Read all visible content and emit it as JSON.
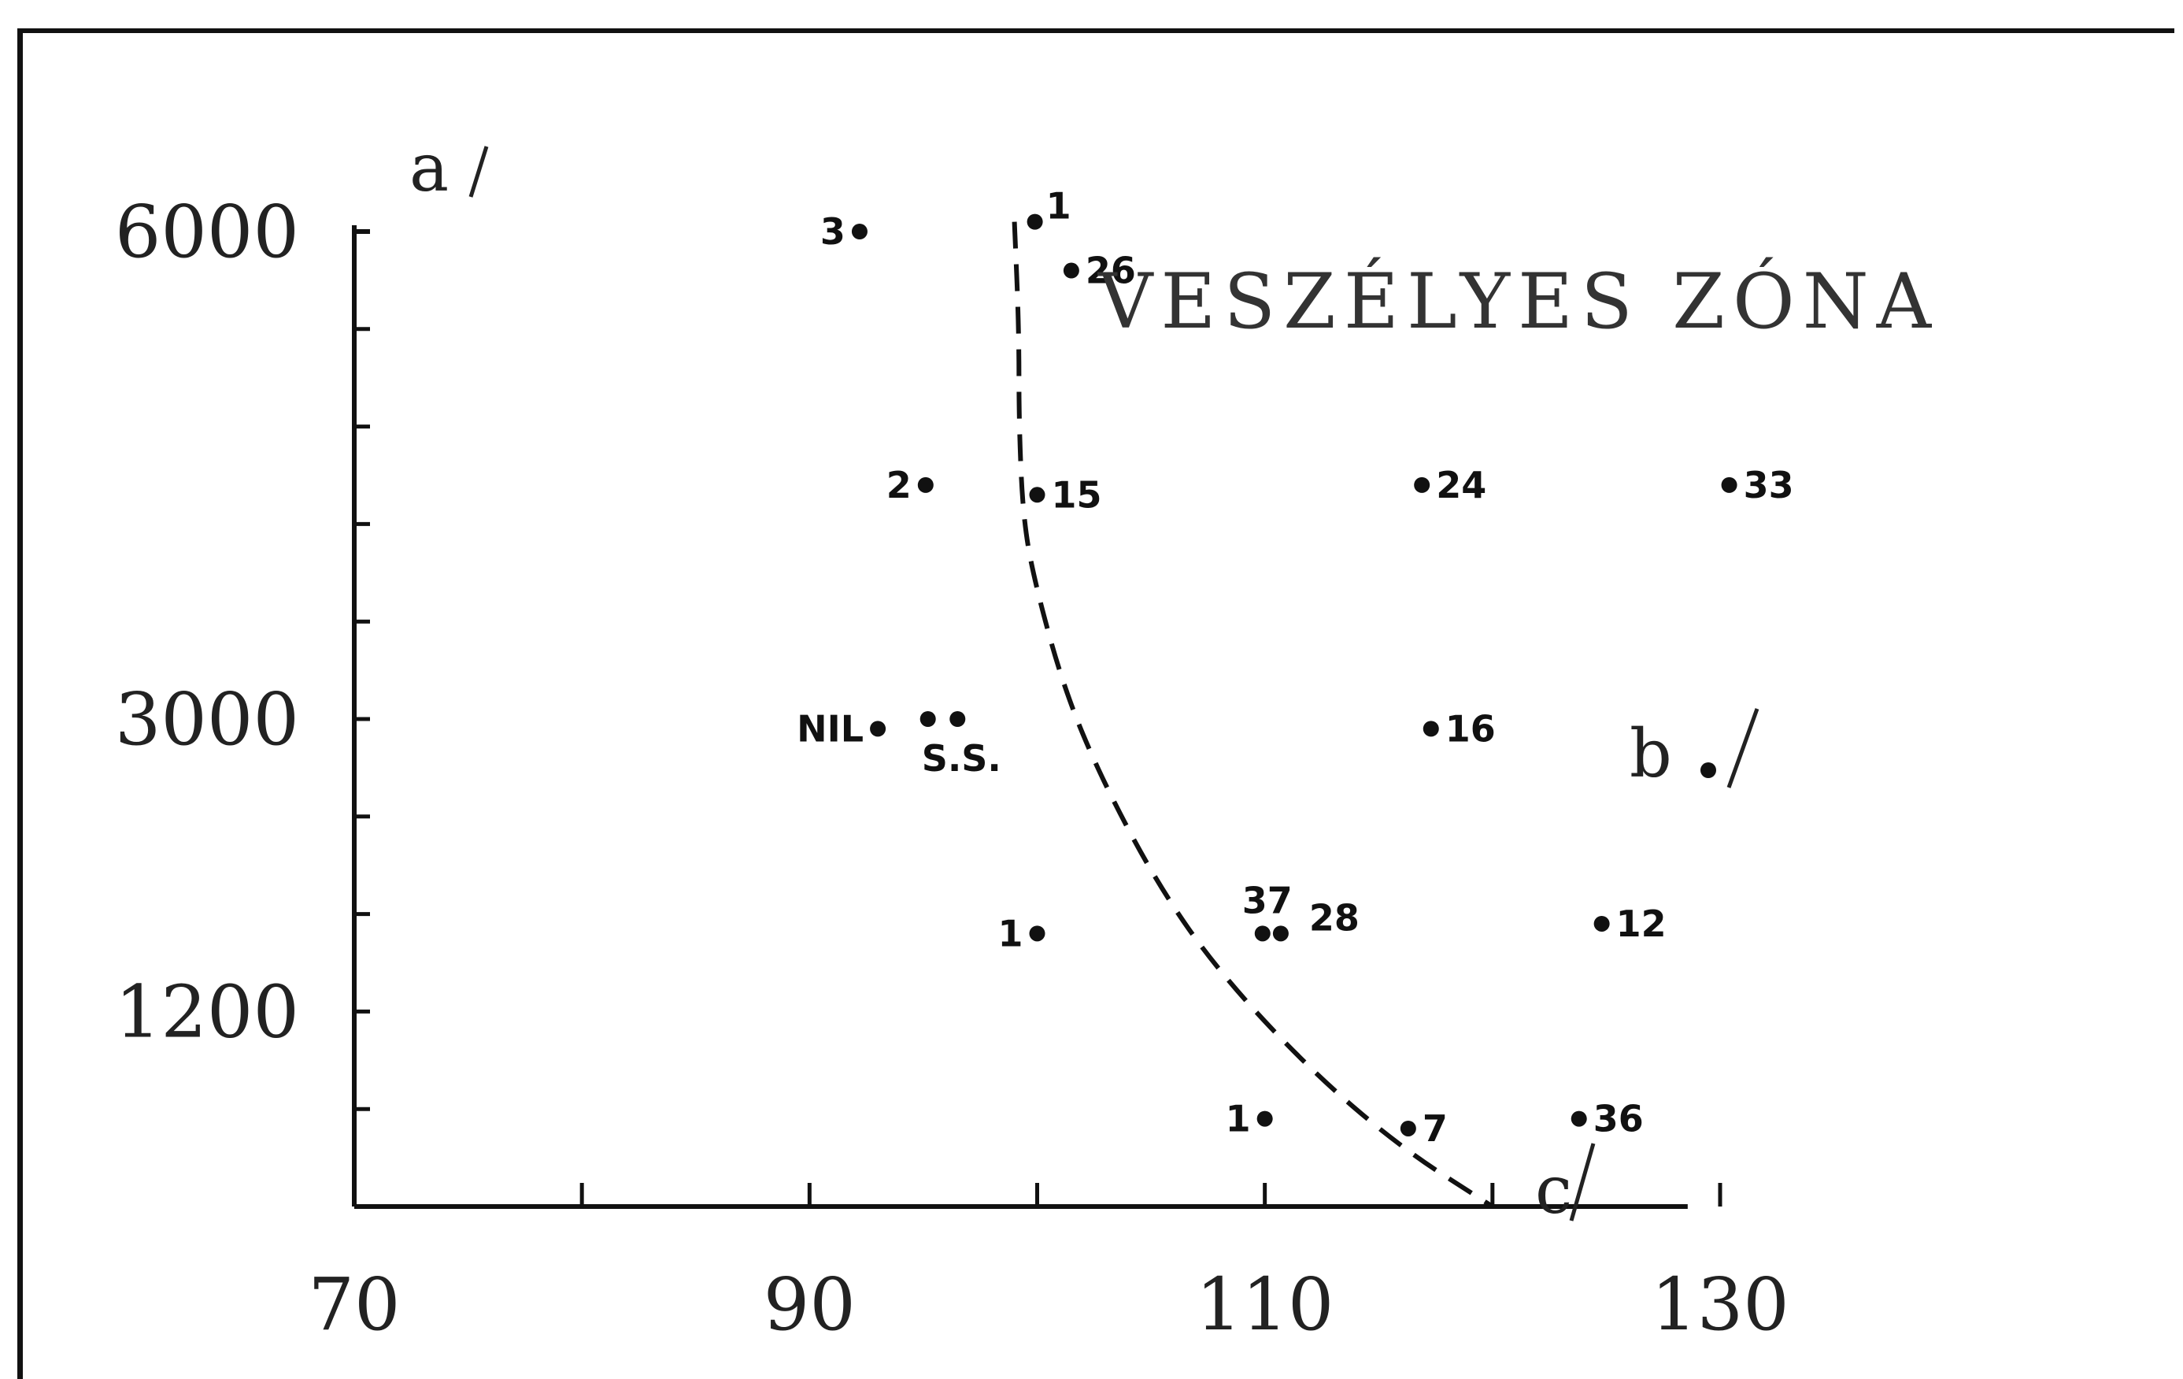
{
  "chart_data": {
    "type": "scatter",
    "title": "",
    "annotation": "VESZÉLYES ZÓNA",
    "x_axis": {
      "letter": "c",
      "tick_labels": [
        "70",
        "90",
        "110",
        "130"
      ],
      "tick_values": [
        70,
        90,
        110,
        130
      ],
      "minor_tick_values": [
        80,
        100,
        120
      ],
      "range": [
        70,
        130
      ]
    },
    "y_axis": {
      "letter": "a",
      "tick_labels": [
        "1200",
        "3000",
        "6000"
      ],
      "tick_levels": [
        2,
        5,
        10
      ],
      "levels": [
        0,
        1,
        2,
        3,
        4,
        5,
        6,
        7,
        8,
        9,
        10
      ],
      "note": "non-linear: level 2 = 1200, level 5 = 3000, level 10 = 6000"
    },
    "side_letter": "b",
    "points": [
      {
        "label": "3",
        "x": 92.2,
        "level": 10
      },
      {
        "label": "1",
        "x": 99.9,
        "level": 10.1
      },
      {
        "label": "26",
        "x": 101.5,
        "level": 9.6
      },
      {
        "label": "2",
        "x": 95.1,
        "level": 7.4
      },
      {
        "label": "15",
        "x": 100.0,
        "level": 7.3
      },
      {
        "label": "24",
        "x": 116.9,
        "level": 7.4
      },
      {
        "label": "33",
        "x": 130.4,
        "level": 7.4
      },
      {
        "label": "NIL",
        "x": 93.0,
        "level": 4.9
      },
      {
        "label": "S.S.",
        "x": 95.2,
        "level": 5.0
      },
      {
        "label": "",
        "x": 96.5,
        "level": 5.0
      },
      {
        "label": "16",
        "x": 117.3,
        "level": 4.9
      },
      {
        "label": "1",
        "x": 100.0,
        "level": 2.8
      },
      {
        "label": "37",
        "x": 109.9,
        "level": 2.8
      },
      {
        "label": "28",
        "x": 110.7,
        "level": 2.8
      },
      {
        "label": "12",
        "x": 124.8,
        "level": 2.9
      },
      {
        "label": "1",
        "x": 110.0,
        "level": 0.9
      },
      {
        "label": "7",
        "x": 116.3,
        "level": 0.8
      },
      {
        "label": "36",
        "x": 123.8,
        "level": 0.9
      }
    ],
    "boundary_curve": [
      {
        "x": 99.0,
        "level": 10.1
      },
      {
        "x": 99.2,
        "level": 9.0
      },
      {
        "x": 99.2,
        "level": 8.0
      },
      {
        "x": 99.4,
        "level": 7.0
      },
      {
        "x": 100.0,
        "level": 6.3
      },
      {
        "x": 101.2,
        "level": 5.3
      },
      {
        "x": 102.8,
        "level": 4.4
      },
      {
        "x": 105.3,
        "level": 3.3
      },
      {
        "x": 108.0,
        "level": 2.4
      },
      {
        "x": 112.0,
        "level": 1.4
      },
      {
        "x": 116.0,
        "level": 0.6
      },
      {
        "x": 120.0,
        "level": 0.0
      }
    ]
  }
}
